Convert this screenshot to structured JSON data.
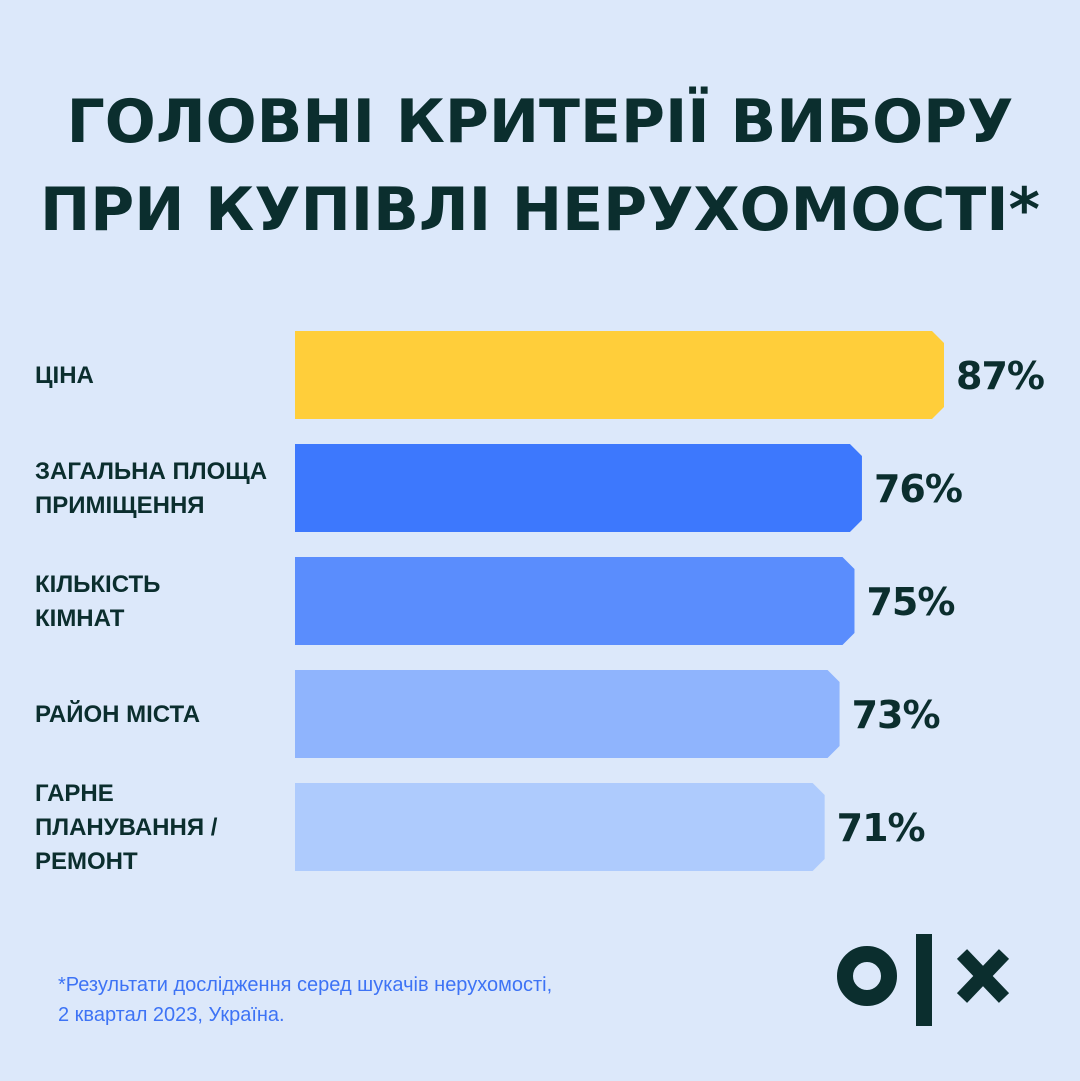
{
  "title": {
    "line1": "ГОЛОВНІ КРИТЕРІЇ ВИБОРУ",
    "line2": "ПРИ КУПІВЛІ НЕРУХОМОСТІ*"
  },
  "chart_data": {
    "type": "bar",
    "orientation": "horizontal",
    "title": "ГОЛОВНІ КРИТЕРІЇ ВИБОРУ ПРИ КУПІВЛІ НЕРУХОМОСТІ*",
    "unit": "%",
    "categories": [
      [
        "ЦІНА"
      ],
      [
        "ЗАГАЛЬНА ПЛОЩА",
        "ПРИМІЩЕННЯ"
      ],
      [
        "КІЛЬКІСТЬ",
        "КІМНАТ"
      ],
      [
        "РАЙОН МІСТА"
      ],
      [
        "ГАРНЕ",
        "ПЛАНУВАННЯ /",
        "РЕМОНТ"
      ]
    ],
    "values": [
      87,
      76,
      75,
      73,
      71
    ],
    "value_labels": [
      "87%",
      "76%",
      "75%",
      "73%",
      "71%"
    ],
    "colors": [
      "#ffce3a",
      "#3d78fd",
      "#5a8dfd",
      "#8fb4fd",
      "#aecbfd"
    ],
    "grid": false,
    "legend": "none"
  },
  "footnote": {
    "line1": "*Результати дослідження серед шукачів нерухомості,",
    "line2": "2 квартал 2023, Україна."
  },
  "logo": {
    "text": "olx",
    "color": "#0b2e2e"
  }
}
